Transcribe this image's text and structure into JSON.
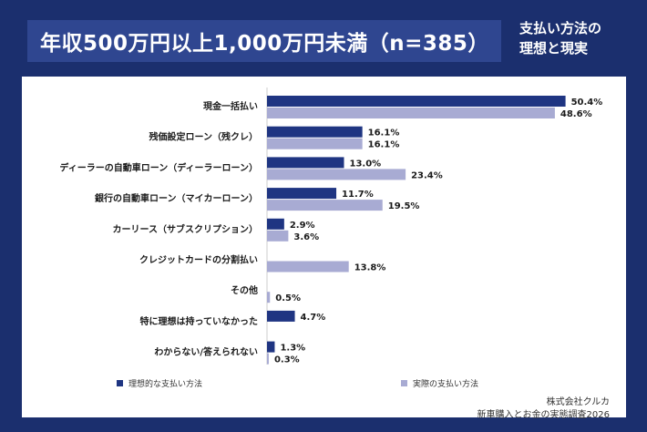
{
  "header": {
    "title": "年収500万円以上1,000万円未満（n=385）",
    "subtitle_line1": "支払い方法の",
    "subtitle_line2": "理想と現実"
  },
  "colors": {
    "background": "#1b2f6e",
    "title_box": "#2f4690",
    "ideal": "#1f3582",
    "actual": "#a8abd3"
  },
  "chart_data": {
    "type": "bar",
    "orientation": "horizontal",
    "categories": [
      "現金一括払い",
      "残価設定ローン（残クレ）",
      "ディーラーの自動車ローン（ディーラーローン）",
      "銀行の自動車ローン（マイカーローン）",
      "カーリース（サブスクリプション）",
      "クレジットカードの分割払い",
      "その他",
      "特に理想は持っていなかった",
      "わからない/答えられない"
    ],
    "series": [
      {
        "name": "理想的な支払い方法",
        "values": [
          50.4,
          16.1,
          13.0,
          11.7,
          2.9,
          null,
          null,
          4.7,
          1.3
        ]
      },
      {
        "name": "実際の支払い方法",
        "values": [
          48.6,
          16.1,
          23.4,
          19.5,
          3.6,
          13.8,
          0.5,
          null,
          0.3
        ]
      }
    ],
    "legend_position": "bottom",
    "grid": false
  },
  "footer": {
    "credit_line1": "株式会社クルカ",
    "credit_line2": "新車購入とお金の実態調査2026"
  }
}
